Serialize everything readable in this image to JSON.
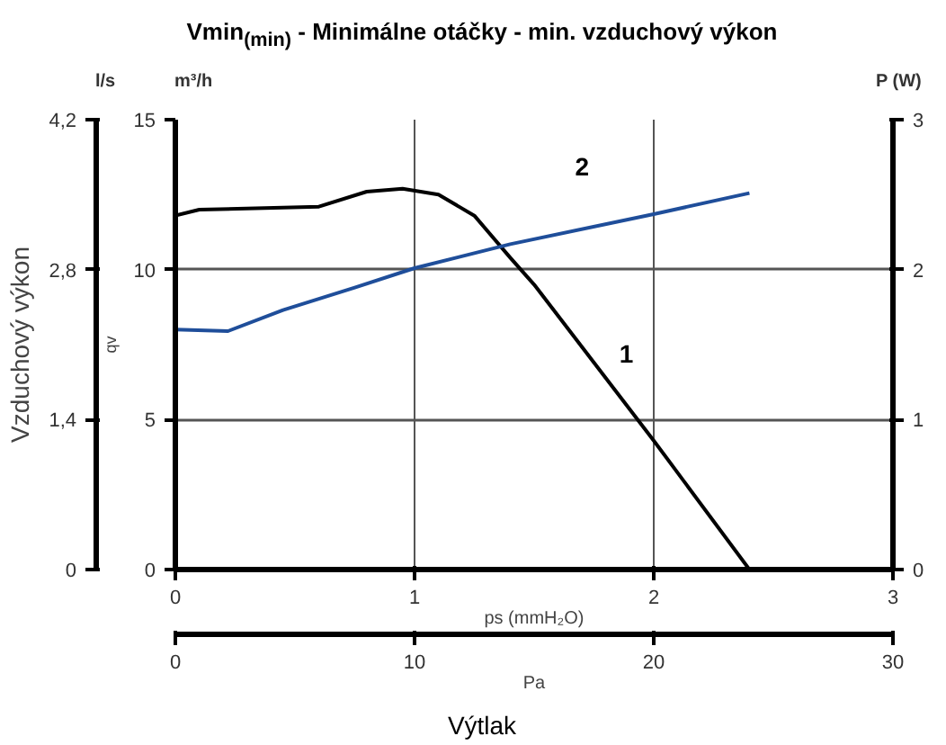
{
  "chart_data": {
    "type": "line",
    "title": "Vmin$_{(min)}$ - Minimálne otáčky - min. vzduchový výkon",
    "xlabel": "ps (mmH₂O)",
    "ylabel": "qv",
    "y2label": "P (W)",
    "y3label": "Vzduchový výkon",
    "x2label": "Pa",
    "xlim": [
      0,
      3
    ],
    "xticks": [
      0,
      1,
      2,
      3
    ],
    "x2lim": [
      0,
      30
    ],
    "x2ticks": [
      0,
      10,
      20,
      30
    ],
    "ylim": [
      0,
      15
    ],
    "yticks": [
      0,
      5,
      10,
      15
    ],
    "y2lim": [
      0,
      3
    ],
    "y2ticks": [
      0,
      1,
      2,
      3
    ],
    "y3lim": [
      0,
      4.2
    ],
    "y3ticks": [
      {
        "value": 0,
        "label": "0"
      },
      {
        "value": 1.4,
        "label": "1,4"
      },
      {
        "value": 2.8,
        "label": "2,8"
      },
      {
        "value": 4.2,
        "label": "4,2"
      }
    ],
    "grid": true,
    "marker": "none",
    "line_style": "solid",
    "series": [
      {
        "name": "1",
        "color": "#000000",
        "axis": "y",
        "x": [
          0,
          0.1,
          0.6,
          0.8,
          0.95,
          1.1,
          1.25,
          1.4,
          1.5,
          2.0,
          2.4
        ],
        "values": [
          11.8,
          12.0,
          12.1,
          12.6,
          12.7,
          12.5,
          11.8,
          10.4,
          9.5,
          4.3,
          0
        ]
      },
      {
        "name": "2",
        "color": "#1f4e9a",
        "axis": "y2",
        "x": [
          0,
          0.22,
          0.45,
          0.75,
          1.0,
          1.4,
          2.0,
          2.4
        ],
        "values": [
          1.6,
          1.59,
          1.73,
          1.88,
          2.01,
          2.17,
          2.37,
          2.51
        ]
      }
    ],
    "annotations": [
      "l/s",
      "m³/h",
      "Výtlak"
    ]
  }
}
